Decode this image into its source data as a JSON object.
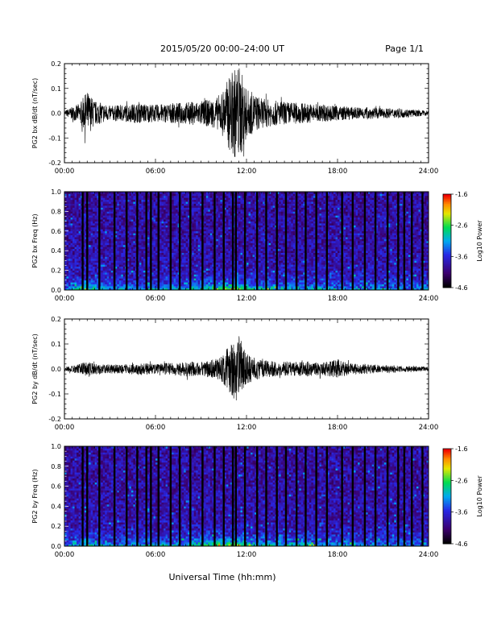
{
  "header": {
    "title": "2015/05/20  00:00–24:00 UT",
    "page": "Page 1/1"
  },
  "footer": {
    "xlabel": "Universal Time (hh:mm)"
  },
  "chart_data": [
    {
      "type": "line",
      "ylabel": "PG2 bx dB/dt (nT/sec)",
      "ylim": [
        -0.2,
        0.2
      ],
      "yticks": [
        "0.2",
        "0.1",
        "0.0",
        "-0.1",
        "-0.2"
      ],
      "xlim": [
        0,
        24
      ],
      "xticks": [
        "00:00",
        "06:00",
        "12:00",
        "18:00",
        "24:00"
      ],
      "envelope": {
        "hours": [
          0,
          1,
          1.5,
          2,
          3,
          4,
          5,
          6,
          7,
          8,
          9,
          10,
          10.5,
          11,
          11.5,
          12,
          13,
          14,
          15,
          16,
          17,
          18,
          19,
          20,
          21,
          22,
          23,
          24
        ],
        "amplitude": [
          0.01,
          0.04,
          0.09,
          0.05,
          0.03,
          0.035,
          0.04,
          0.035,
          0.04,
          0.045,
          0.05,
          0.06,
          0.1,
          0.17,
          0.2,
          0.1,
          0.06,
          0.05,
          0.045,
          0.04,
          0.035,
          0.03,
          0.025,
          0.025,
          0.02,
          0.02,
          0.015,
          0.01
        ]
      }
    },
    {
      "type": "heatmap",
      "ylabel": "PG2 bx Freq (Hz)",
      "ylim": [
        0.0,
        1.0
      ],
      "yticks": [
        "1.0",
        "0.8",
        "0.6",
        "0.4",
        "0.2",
        "0.0"
      ],
      "xlim": [
        0,
        24
      ],
      "xticks": [
        "00:00",
        "06:00",
        "12:00",
        "18:00",
        "24:00"
      ],
      "colorbar": {
        "label": "Log10 Power",
        "ticks": [
          "-1.6",
          "-2.6",
          "-3.6",
          "-4.6"
        ],
        "range": [
          -4.6,
          -1.6
        ]
      },
      "dark_columns_hours": [
        1.2,
        1.5,
        2.3,
        3.3,
        4.1,
        4.8,
        5.4,
        5.7,
        6.2,
        7.0,
        7.6,
        8.3,
        9.1,
        9.9,
        10.5,
        11.1,
        11.3,
        11.9,
        12.7,
        13.3,
        14.0,
        14.6,
        15.3,
        15.9,
        16.6,
        17.3,
        18.3,
        19.0,
        19.8,
        20.5,
        21.3,
        22.0,
        22.4,
        22.9,
        23.6
      ]
    },
    {
      "type": "line",
      "ylabel": "PG2 by dB/dt (nT/sec)",
      "ylim": [
        -0.2,
        0.2
      ],
      "yticks": [
        "0.2",
        "0.1",
        "0.0",
        "-0.1",
        "-0.2"
      ],
      "xlim": [
        0,
        24
      ],
      "xticks": [
        "00:00",
        "06:00",
        "12:00",
        "18:00",
        "24:00"
      ],
      "envelope": {
        "hours": [
          0,
          1,
          1.5,
          2,
          3,
          4,
          5,
          6,
          7,
          8,
          9,
          10,
          10.5,
          11,
          11.5,
          12,
          13,
          14,
          15,
          16,
          17,
          18,
          19,
          20,
          21,
          22,
          23,
          24
        ],
        "amplitude": [
          0.008,
          0.02,
          0.03,
          0.02,
          0.018,
          0.02,
          0.025,
          0.02,
          0.025,
          0.03,
          0.03,
          0.04,
          0.06,
          0.11,
          0.14,
          0.06,
          0.035,
          0.03,
          0.03,
          0.03,
          0.025,
          0.04,
          0.02,
          0.02,
          0.015,
          0.015,
          0.012,
          0.008
        ]
      }
    },
    {
      "type": "heatmap",
      "ylabel": "PG2 by Freq (Hz)",
      "ylim": [
        0.0,
        1.0
      ],
      "yticks": [
        "1.0",
        "0.8",
        "0.6",
        "0.4",
        "0.2",
        "0.0"
      ],
      "xlim": [
        0,
        24
      ],
      "xticks": [
        "00:00",
        "06:00",
        "12:00",
        "18:00",
        "24:00"
      ],
      "colorbar": {
        "label": "Log10 Power",
        "ticks": [
          "-1.6",
          "-2.6",
          "-3.6",
          "-4.6"
        ],
        "range": [
          -4.6,
          -1.6
        ]
      },
      "dark_columns_hours": [
        1.2,
        1.5,
        2.3,
        3.3,
        4.1,
        4.8,
        5.4,
        5.7,
        6.2,
        7.0,
        7.6,
        8.3,
        9.1,
        9.9,
        10.5,
        11.1,
        11.3,
        11.9,
        12.7,
        13.3,
        14.0,
        14.6,
        15.3,
        15.9,
        16.6,
        17.3,
        18.3,
        19.0,
        19.8,
        20.5,
        21.3,
        22.0,
        22.4,
        22.9,
        23.6
      ]
    }
  ]
}
